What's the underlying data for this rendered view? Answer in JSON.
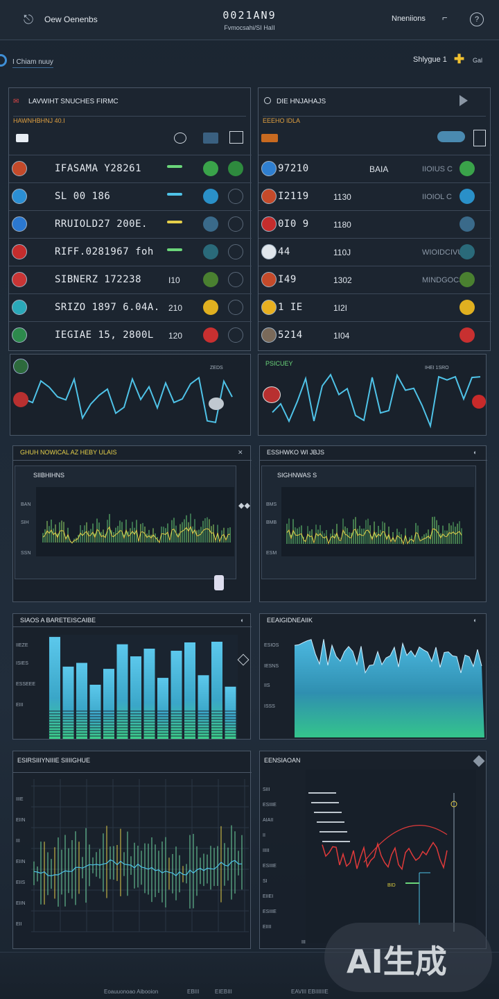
{
  "header": {
    "app_name": "Oew Oenenbs",
    "title": "0021AN9",
    "subtitle": "Fvmocsahi/SI HaII",
    "menu_label": "Nneniions",
    "help_symbol": "?",
    "back_symbol": "⎋",
    "door_symbol": "⌐"
  },
  "subbar": {
    "left_label": "I Chiam nuuy",
    "right_label": "Shlygue 1",
    "plus_symbol": "✚",
    "gal_label": "Gal"
  },
  "left_table": {
    "title": "LAVWIHT SNUCHES FIRMC",
    "subheader": "HAWNHBHNJ 40.I",
    "rows": [
      {
        "name": "IFASAMA Y28261",
        "value": "",
        "color": "#c44a2a"
      },
      {
        "name": "SL 00 186",
        "value": "",
        "color": "#2b8fd4"
      },
      {
        "name": "RRUIOLD27 200E.",
        "value": "",
        "color": "#2b78d0"
      },
      {
        "name": "RIFF.0281967 foh",
        "value": "",
        "color": "#c42d2d"
      },
      {
        "name": "SIBNERZ 172238",
        "value": "I10",
        "color": "#c83535"
      },
      {
        "name": "SRIZO 1897 6.04A.",
        "value": "210",
        "color": "#2aa8b8"
      },
      {
        "name": "IEGIAE 15, 2800L",
        "value": "120",
        "color": "#2d8a4c"
      }
    ]
  },
  "right_table": {
    "title": "DIE HNJAHAJS",
    "subheader": "EEEHO IDLA",
    "rows": [
      {
        "name": "97210",
        "value": "",
        "extra": "BAIA",
        "tail": "IIOIUS C",
        "color": "#2f7fd0"
      },
      {
        "name": "I2119",
        "value": "1130",
        "extra": "",
        "tail": "IIOIOL C",
        "color": "#c44a2a"
      },
      {
        "name": "0I0 9",
        "value": "1180",
        "extra": "",
        "tail": "",
        "color": "#c42d2d"
      },
      {
        "name": "44",
        "value": "110J",
        "extra": "",
        "tail": "WIOIDCIVUINGU",
        "color": "#e0e6ec"
      },
      {
        "name": "I49",
        "value": "1302",
        "extra": "",
        "tail": "MINDGOCSTI",
        "color": "#c44a2a"
      },
      {
        "name": "1 IE",
        "value": "1I2I",
        "extra": "",
        "tail": "",
        "color": "#e8b020"
      },
      {
        "name": "5214",
        "value": "1I04",
        "extra": "",
        "tail": "",
        "color": "#7a6a5a"
      }
    ]
  },
  "line_panel_left": {
    "legend": "ZEDS"
  },
  "line_panel_right": {
    "legend": "PSICUEY",
    "corner": "IHEI 1SRO"
  },
  "mid_chart_left": {
    "title": "GHUH NOWICAL AZ HEBY ULAIS",
    "inner_title": "SIIBHIHNS",
    "ylabels": [
      "BAN",
      "SIH",
      "SSN"
    ]
  },
  "mid_chart_right": {
    "title": "ESSHWKO WI JBJS",
    "inner_title": "SIGHNWAS S",
    "ylabels": [
      "BMS",
      "BMB",
      "ESM"
    ]
  },
  "bar_chart_left": {
    "title": "SIAOS A BARETEISCAIBE",
    "ylabels": [
      "IIEZE",
      "ISIES",
      "ESSEEE",
      "EIII"
    ]
  },
  "bar_chart_right": {
    "title": "EEAIGIDNEAIIK",
    "ylabels": [
      "ESIOS",
      "IESNS",
      "IIS",
      "ISSS"
    ]
  },
  "bottom_left": {
    "title": "ESIRSIIIYNIIIE SIIIIGHUE",
    "ylabels": [
      "IIIE",
      "EIIN",
      "III",
      "EIIN",
      "EIIS",
      "EIIN",
      "EII"
    ]
  },
  "bottom_right": {
    "title": "EENSIAOAN",
    "ylabels": [
      "SIII",
      "ESIIIE",
      "AIAII",
      "II",
      "IIIII",
      "ESIIIE",
      "SI",
      "EIIEI",
      "ESIIIE",
      "EIIII"
    ],
    "marker_a": "BID",
    "marker_b": "III"
  },
  "footer": {
    "a": "Eoauuonoao Aibooion",
    "b": "EBIII",
    "c": "EIEBIII",
    "d": "EAVIII EBIIIIIIE"
  },
  "watermark": "AI生成",
  "colors": {
    "accent": "#4fc3e8",
    "green": "#6bd67a",
    "yellow": "#e6d04a",
    "red": "#e03a3a",
    "panel": "#1c2530"
  }
}
